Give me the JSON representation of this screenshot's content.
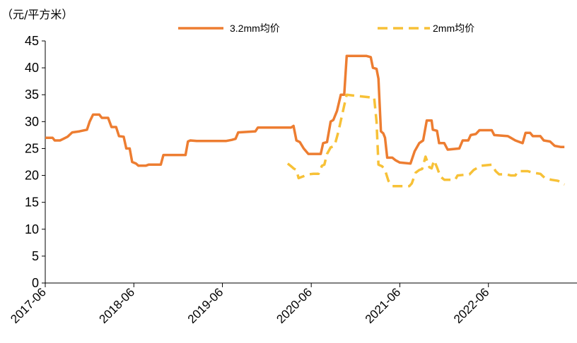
{
  "chart_data": {
    "type": "line",
    "unit_label": "（元/平方米）",
    "xlabel": "",
    "ylabel": "",
    "ylim": [
      0,
      45
    ],
    "yticks": [
      0,
      5,
      10,
      15,
      20,
      25,
      30,
      35,
      40,
      45
    ],
    "x_range": [
      "2017-06",
      "2023-06"
    ],
    "x_tick_labels": [
      "2017-06",
      "2018-06",
      "2019-06",
      "2020-06",
      "2021-06",
      "2022-06"
    ],
    "grid": false,
    "legend_position": "top-center",
    "series": [
      {
        "name": "3.2mm均价",
        "color": "#ED7D31",
        "dash": "solid",
        "points": [
          [
            "2017-06-01",
            27.0
          ],
          [
            "2017-07-01",
            27.0
          ],
          [
            "2017-07-10",
            26.5
          ],
          [
            "2017-08-01",
            26.5
          ],
          [
            "2017-08-15",
            26.8
          ],
          [
            "2017-09-01",
            27.2
          ],
          [
            "2017-09-20",
            28.0
          ],
          [
            "2017-10-20",
            28.2
          ],
          [
            "2017-11-20",
            28.5
          ],
          [
            "2017-12-01",
            30.0
          ],
          [
            "2017-12-15",
            31.3
          ],
          [
            "2018-01-10",
            31.3
          ],
          [
            "2018-01-20",
            30.7
          ],
          [
            "2018-02-15",
            30.7
          ],
          [
            "2018-03-01",
            29.0
          ],
          [
            "2018-03-20",
            29.0
          ],
          [
            "2018-04-01",
            27.3
          ],
          [
            "2018-04-20",
            27.2
          ],
          [
            "2018-05-01",
            25.0
          ],
          [
            "2018-05-15",
            25.0
          ],
          [
            "2018-05-25",
            22.5
          ],
          [
            "2018-06-10",
            22.2
          ],
          [
            "2018-06-20",
            21.8
          ],
          [
            "2018-07-20",
            21.8
          ],
          [
            "2018-08-01",
            22.0
          ],
          [
            "2018-09-20",
            22.0
          ],
          [
            "2018-10-01",
            23.8
          ],
          [
            "2018-12-31",
            23.8
          ],
          [
            "2019-01-10",
            26.3
          ],
          [
            "2019-01-20",
            26.5
          ],
          [
            "2019-02-15",
            26.4
          ],
          [
            "2019-06-15",
            26.4
          ],
          [
            "2019-07-10",
            26.6
          ],
          [
            "2019-07-25",
            26.8
          ],
          [
            "2019-08-05",
            28.0
          ],
          [
            "2019-10-15",
            28.2
          ],
          [
            "2019-10-25",
            28.9
          ],
          [
            "2020-03-10",
            28.9
          ],
          [
            "2020-03-20",
            29.2
          ],
          [
            "2020-04-01",
            26.5
          ],
          [
            "2020-04-15",
            26.2
          ],
          [
            "2020-05-01",
            25.0
          ],
          [
            "2020-05-20",
            24.0
          ],
          [
            "2020-07-10",
            24.0
          ],
          [
            "2020-07-20",
            26.0
          ],
          [
            "2020-08-05",
            26.2
          ],
          [
            "2020-08-20",
            30.0
          ],
          [
            "2020-08-31",
            30.3
          ],
          [
            "2020-09-15",
            32.0
          ],
          [
            "2020-10-01",
            35.0
          ],
          [
            "2020-10-15",
            35.0
          ],
          [
            "2020-10-25",
            42.2
          ],
          [
            "2020-12-10",
            42.2
          ],
          [
            "2021-01-15",
            42.2
          ],
          [
            "2021-02-01",
            42.0
          ],
          [
            "2021-02-10",
            40.0
          ],
          [
            "2021-02-25",
            39.8
          ],
          [
            "2021-03-05",
            38.0
          ],
          [
            "2021-03-15",
            28.2
          ],
          [
            "2021-03-25",
            27.8
          ],
          [
            "2021-04-01",
            27.0
          ],
          [
            "2021-04-10",
            23.3
          ],
          [
            "2021-05-01",
            23.3
          ],
          [
            "2021-05-15",
            22.8
          ],
          [
            "2021-06-01",
            22.4
          ],
          [
            "2021-07-15",
            22.2
          ],
          [
            "2021-08-01",
            24.5
          ],
          [
            "2021-08-20",
            26.0
          ],
          [
            "2021-09-05",
            26.5
          ],
          [
            "2021-09-20",
            30.2
          ],
          [
            "2021-10-10",
            30.2
          ],
          [
            "2021-10-15",
            28.5
          ],
          [
            "2021-11-01",
            28.3
          ],
          [
            "2021-11-10",
            26.0
          ],
          [
            "2021-12-01",
            26.0
          ],
          [
            "2021-12-15",
            24.8
          ],
          [
            "2022-02-01",
            25.0
          ],
          [
            "2022-02-15",
            26.5
          ],
          [
            "2022-03-10",
            26.5
          ],
          [
            "2022-03-20",
            27.5
          ],
          [
            "2022-04-10",
            27.7
          ],
          [
            "2022-04-25",
            28.4
          ],
          [
            "2022-06-15",
            28.4
          ],
          [
            "2022-06-25",
            27.5
          ],
          [
            "2022-08-20",
            27.3
          ],
          [
            "2022-09-01",
            27.0
          ],
          [
            "2022-09-20",
            26.5
          ],
          [
            "2022-10-20",
            26.0
          ],
          [
            "2022-11-01",
            27.9
          ],
          [
            "2022-11-20",
            27.9
          ],
          [
            "2022-12-01",
            27.3
          ],
          [
            "2023-01-01",
            27.3
          ],
          [
            "2023-01-15",
            26.5
          ],
          [
            "2023-02-10",
            26.3
          ],
          [
            "2023-03-01",
            25.5
          ],
          [
            "2023-03-25",
            25.3
          ],
          [
            "2023-04-10",
            25.3
          ]
        ]
      },
      {
        "name": "2mm均价",
        "color": "#F7C137",
        "dash": "dashed",
        "points": [
          [
            "2020-02-25",
            22.2
          ],
          [
            "2020-03-10",
            21.7
          ],
          [
            "2020-03-20",
            21.3
          ],
          [
            "2020-04-01",
            21.0
          ],
          [
            "2020-04-10",
            19.5
          ],
          [
            "2020-05-20",
            20.2
          ],
          [
            "2020-06-10",
            20.3
          ],
          [
            "2020-07-01",
            20.3
          ],
          [
            "2020-07-15",
            21.8
          ],
          [
            "2020-07-25",
            22.0
          ],
          [
            "2020-08-05",
            24.0
          ],
          [
            "2020-08-20",
            25.2
          ],
          [
            "2020-09-05",
            25.5
          ],
          [
            "2020-09-20",
            28.0
          ],
          [
            "2020-10-05",
            31.0
          ],
          [
            "2020-10-15",
            33.0
          ],
          [
            "2020-10-25",
            35.0
          ],
          [
            "2020-12-01",
            34.8
          ],
          [
            "2021-02-01",
            34.5
          ],
          [
            "2021-02-15",
            34.5
          ],
          [
            "2021-02-25",
            30.0
          ],
          [
            "2021-03-05",
            22.0
          ],
          [
            "2021-03-20",
            21.7
          ],
          [
            "2021-04-01",
            21.0
          ],
          [
            "2021-04-15",
            19.0
          ],
          [
            "2021-05-01",
            18.0
          ],
          [
            "2021-07-10",
            18.0
          ],
          [
            "2021-07-20",
            18.5
          ],
          [
            "2021-08-05",
            20.5
          ],
          [
            "2021-08-20",
            21.0
          ],
          [
            "2021-09-01",
            21.2
          ],
          [
            "2021-09-15",
            23.5
          ],
          [
            "2021-10-01",
            21.5
          ],
          [
            "2021-10-10",
            21.3
          ],
          [
            "2021-10-20",
            22.8
          ],
          [
            "2021-11-01",
            21.5
          ],
          [
            "2021-11-15",
            19.8
          ],
          [
            "2021-12-01",
            19.2
          ],
          [
            "2022-01-15",
            19.2
          ],
          [
            "2022-01-25",
            20.0
          ],
          [
            "2022-03-15",
            20.2
          ],
          [
            "2022-04-01",
            21.0
          ],
          [
            "2022-05-01",
            21.8
          ],
          [
            "2022-06-15",
            22.0
          ],
          [
            "2022-07-01",
            20.8
          ],
          [
            "2022-07-15",
            20.2
          ],
          [
            "2022-08-15",
            20.2
          ],
          [
            "2022-09-01",
            20.0
          ],
          [
            "2022-09-20",
            20.0
          ],
          [
            "2022-10-01",
            20.8
          ],
          [
            "2022-11-10",
            20.8
          ],
          [
            "2022-12-01",
            20.5
          ],
          [
            "2023-01-01",
            20.3
          ],
          [
            "2023-01-20",
            19.5
          ],
          [
            "2023-02-15",
            19.2
          ],
          [
            "2023-03-15",
            19.0
          ],
          [
            "2023-04-10",
            18.3
          ]
        ]
      }
    ]
  }
}
